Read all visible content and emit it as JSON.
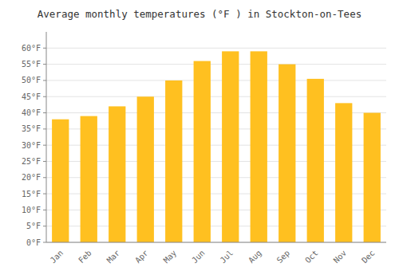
{
  "chart_data": {
    "type": "bar",
    "title": "Average monthly temperatures (°F ) in Stockton-on-Tees",
    "categories": [
      "Jan",
      "Feb",
      "Mar",
      "Apr",
      "May",
      "Jun",
      "Jul",
      "Aug",
      "Sep",
      "Oct",
      "Nov",
      "Dec"
    ],
    "values": [
      38,
      39,
      42,
      45,
      50,
      56,
      59,
      59,
      55,
      50.5,
      43,
      40
    ],
    "color": "#FFC020",
    "ylim": [
      0,
      65
    ],
    "yticks": [
      {
        "value": 0,
        "label": "0°F"
      },
      {
        "value": 5,
        "label": "5°F"
      },
      {
        "value": 10,
        "label": "10°F"
      },
      {
        "value": 15,
        "label": "15°F"
      },
      {
        "value": 20,
        "label": "20°F"
      },
      {
        "value": 25,
        "label": "25°F"
      },
      {
        "value": 30,
        "label": "30°F"
      },
      {
        "value": 35,
        "label": "35°F"
      },
      {
        "value": 40,
        "label": "40°F"
      },
      {
        "value": 45,
        "label": "45°F"
      },
      {
        "value": 50,
        "label": "50°F"
      },
      {
        "value": 55,
        "label": "55°F"
      },
      {
        "value": 60,
        "label": "60°F"
      }
    ],
    "grid": true
  }
}
